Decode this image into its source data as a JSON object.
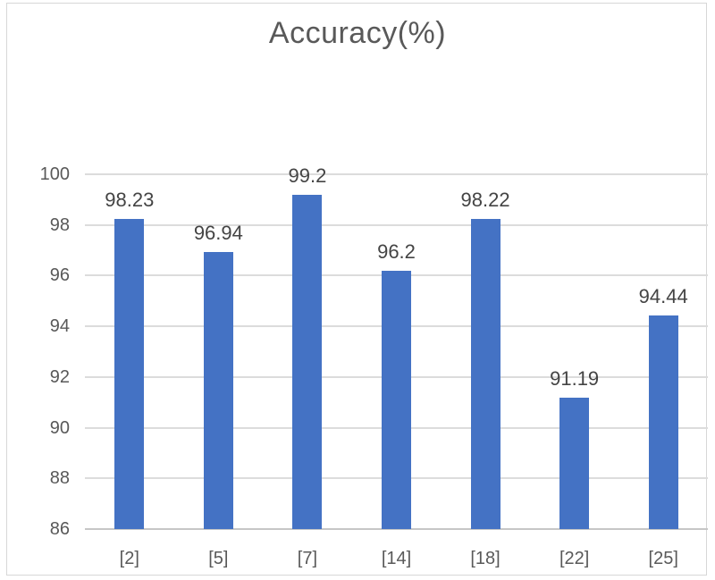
{
  "chart_data": {
    "type": "bar",
    "title": "Accuracy(%)",
    "categories": [
      "[2]",
      "[5]",
      "[7]",
      "[14]",
      "[18]",
      "[22]",
      "[25]"
    ],
    "values": [
      98.23,
      96.94,
      99.2,
      96.2,
      98.22,
      91.19,
      94.44
    ],
    "xlabel": "",
    "ylabel": "",
    "ylim": [
      86,
      100
    ],
    "yticks": [
      86,
      88,
      90,
      92,
      94,
      96,
      98,
      100
    ],
    "grid": true,
    "legend": false,
    "colors": {
      "bar": "#4472c4",
      "gridline": "#dcdcdc",
      "axis_line": "#c6c6c6",
      "tick_label": "#595959",
      "value_label": "#444444",
      "title": "#595959",
      "chart_border": "#d7d7d7"
    }
  }
}
